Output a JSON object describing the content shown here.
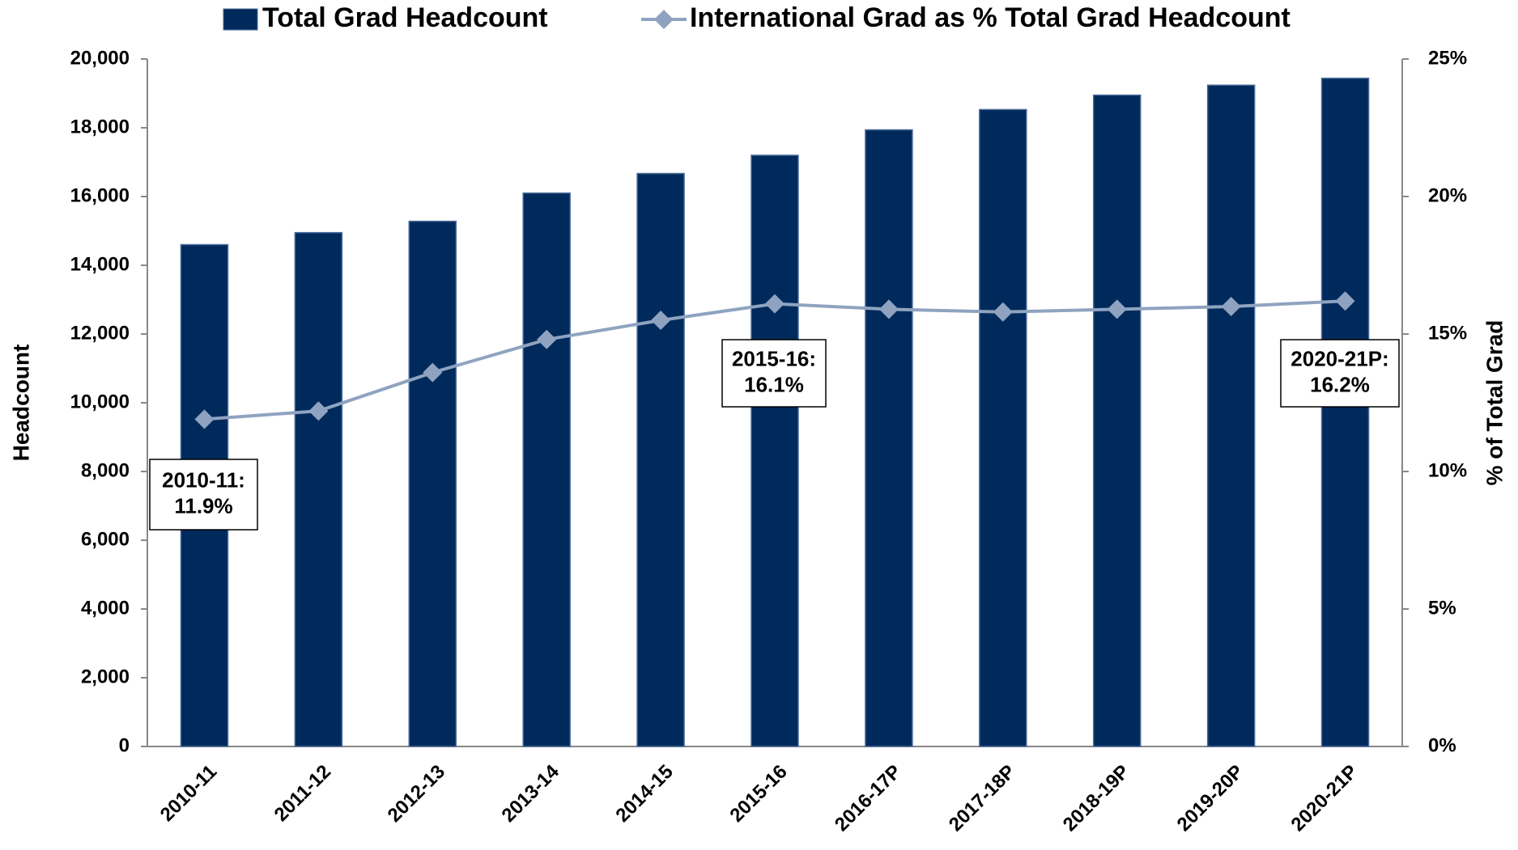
{
  "chart_data": {
    "type": "bar_line",
    "categories": [
      "2010-11",
      "2011-12",
      "2012-13",
      "2013-14",
      "2014-15",
      "2015-16",
      "2016-17P",
      "2017-18P",
      "2018-19P",
      "2019-20P",
      "2020-21P"
    ],
    "series": [
      {
        "name": "Total Grad Headcount",
        "type": "bar",
        "color": "#002a5c",
        "values": [
          14600,
          14950,
          15280,
          16100,
          16670,
          17200,
          17940,
          18530,
          18950,
          19240,
          19440
        ]
      },
      {
        "name": "International Grad as % Total Grad Headcount",
        "type": "line",
        "axis": "y2",
        "color": "#8fa3c0",
        "values": [
          11.9,
          12.2,
          13.6,
          14.8,
          15.5,
          16.1,
          15.9,
          15.8,
          15.9,
          16.0,
          16.2
        ]
      }
    ],
    "ylabel": "Headcount",
    "y2label": "% of Total Grad",
    "ylim": [
      0,
      20000
    ],
    "yticks": [
      0,
      {
        "value": 2000,
        "label": "2,000"
      },
      {
        "value": 4000,
        "label": "4,000"
      },
      {
        "value": 6000,
        "label": "6,000"
      },
      {
        "value": 8000,
        "label": "8,000"
      },
      {
        "value": 10000,
        "label": "10,000"
      },
      {
        "value": 12000,
        "label": "12,000"
      },
      {
        "value": 14000,
        "label": "14,000"
      },
      {
        "value": 16000,
        "label": "16,000"
      },
      {
        "value": 18000,
        "label": "18,000"
      },
      {
        "value": 20000,
        "label": "20,000"
      }
    ],
    "y2lim": [
      0,
      25
    ],
    "y2ticks": [
      {
        "value": 0,
        "label": "0%"
      },
      {
        "value": 5,
        "label": "5%"
      },
      {
        "value": 10,
        "label": "10%"
      },
      {
        "value": 15,
        "label": "15%"
      },
      {
        "value": 20,
        "label": "20%"
      },
      {
        "value": 25,
        "label": "25%"
      }
    ],
    "grid": false,
    "legend": "top",
    "annotations": [
      {
        "text": [
          "2010-11:",
          "11.9%"
        ]
      },
      {
        "text": [
          "2015-16:",
          "16.1%"
        ]
      },
      {
        "text": [
          "2020-21P:",
          "16.2%"
        ]
      }
    ]
  }
}
